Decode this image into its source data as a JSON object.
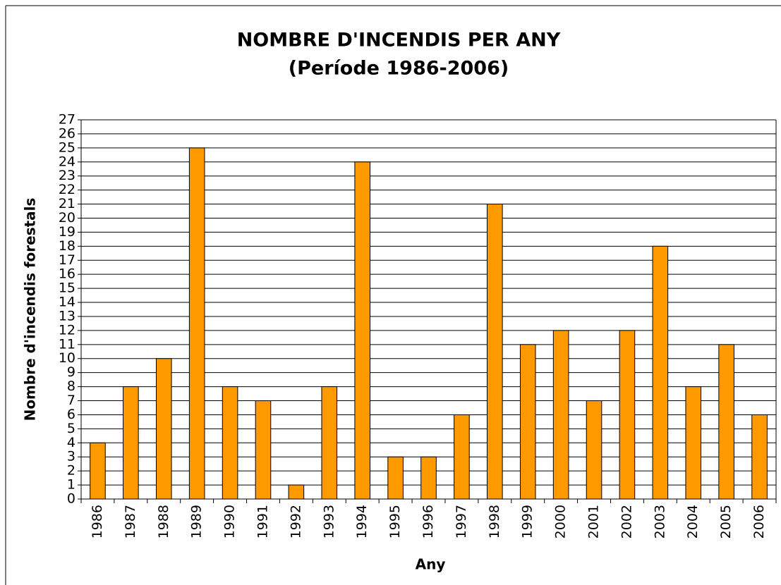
{
  "chart_data": {
    "type": "bar",
    "title": "NOMBRE D'INCENDIS PER ANY",
    "subtitle": "(Període 1986-2006)",
    "x_label": "Any",
    "y_label": "Nombre d'incendis forestals",
    "categories": [
      "1986",
      "1987",
      "1988",
      "1989",
      "1990",
      "1991",
      "1992",
      "1993",
      "1994",
      "1995",
      "1996",
      "1997",
      "1998",
      "1999",
      "2000",
      "2001",
      "2002",
      "2003",
      "2004",
      "2005",
      "2006"
    ],
    "values": [
      4,
      8,
      10,
      25,
      8,
      7,
      1,
      8,
      24,
      3,
      3,
      6,
      21,
      11,
      12,
      7,
      12,
      18,
      8,
      11,
      6
    ],
    "color": "#ff9900",
    "ylim": [
      0,
      27
    ],
    "yticks": [
      0,
      1,
      2,
      3,
      4,
      5,
      6,
      7,
      8,
      9,
      10,
      11,
      12,
      13,
      14,
      15,
      16,
      17,
      18,
      19,
      20,
      21,
      22,
      23,
      24,
      25,
      26,
      27
    ],
    "grid": true
  }
}
